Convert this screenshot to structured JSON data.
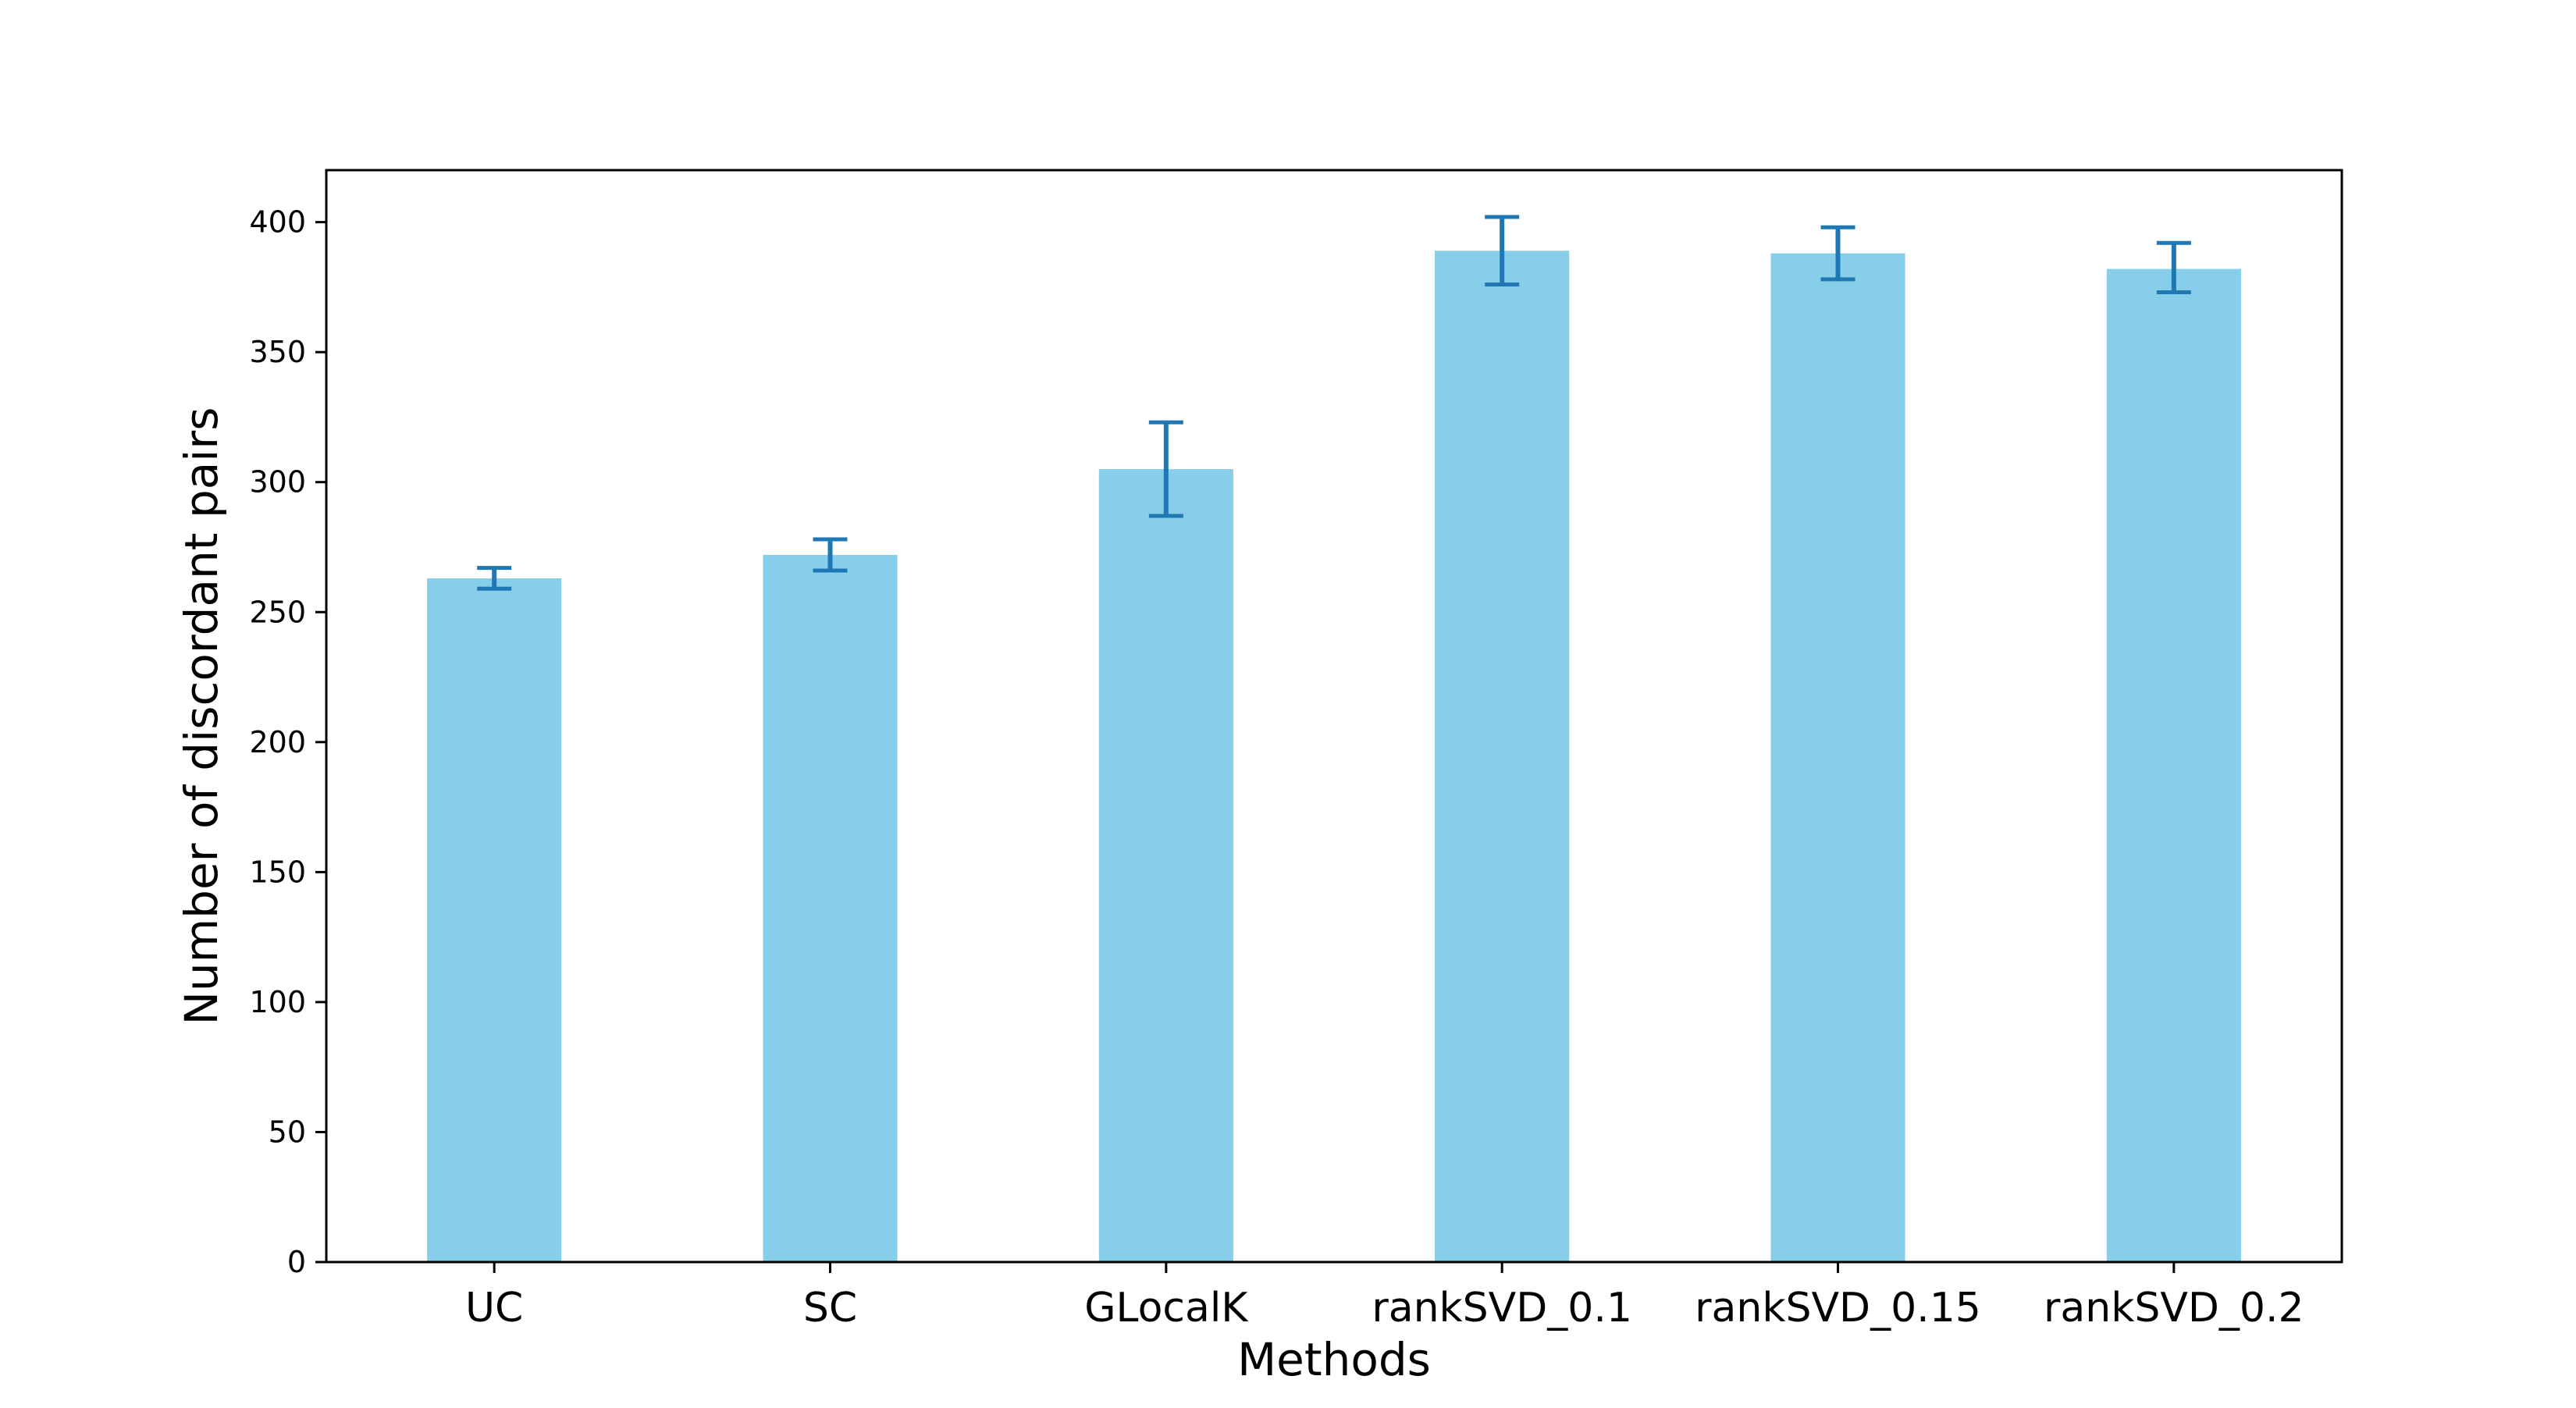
{
  "chart_data": {
    "type": "bar",
    "categories": [
      "UC",
      "SC",
      "GLocalK",
      "rankSVD_0.1",
      "rankSVD_0.15",
      "rankSVD_0.2"
    ],
    "values": [
      263,
      272,
      305,
      389,
      388,
      382
    ],
    "error_low": [
      259,
      266,
      287,
      376,
      378,
      373
    ],
    "error_high": [
      267,
      278,
      323,
      402,
      398,
      392
    ],
    "title": "",
    "xlabel": "Methods",
    "ylabel": "Number of discordant pairs",
    "ylim": [
      0,
      420
    ],
    "yticks": [
      0,
      50,
      100,
      150,
      200,
      250,
      300,
      350,
      400
    ],
    "grid": false,
    "legend": "none",
    "bar_color": "#87ceeb",
    "error_color": "#1f77b4"
  }
}
